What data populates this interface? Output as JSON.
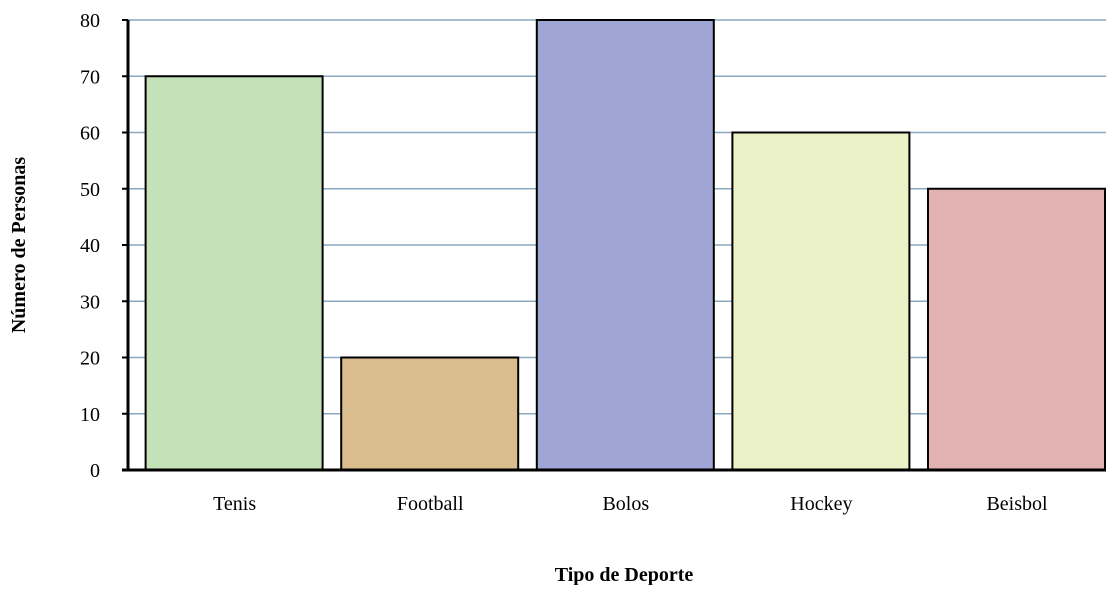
{
  "chart_data": {
    "type": "bar",
    "categories": [
      "Tenis",
      "Football",
      "Bolos",
      "Hockey",
      "Beisbol"
    ],
    "values": [
      70,
      20,
      80,
      60,
      50
    ],
    "colors": [
      "#c4e2b8",
      "#d9bd8e",
      "#9fa5d4",
      "#ecf2c8",
      "#e2b2b3"
    ],
    "title": "",
    "xlabel": "Tipo de Deporte",
    "ylabel": "Número de Personas",
    "ylim": [
      0,
      80
    ],
    "yticks": [
      0,
      10,
      20,
      30,
      40,
      50,
      60,
      70,
      80
    ],
    "grid": true,
    "grid_color": "#8aa8c0",
    "bar_edge_color": "#000000",
    "legend": "none"
  }
}
